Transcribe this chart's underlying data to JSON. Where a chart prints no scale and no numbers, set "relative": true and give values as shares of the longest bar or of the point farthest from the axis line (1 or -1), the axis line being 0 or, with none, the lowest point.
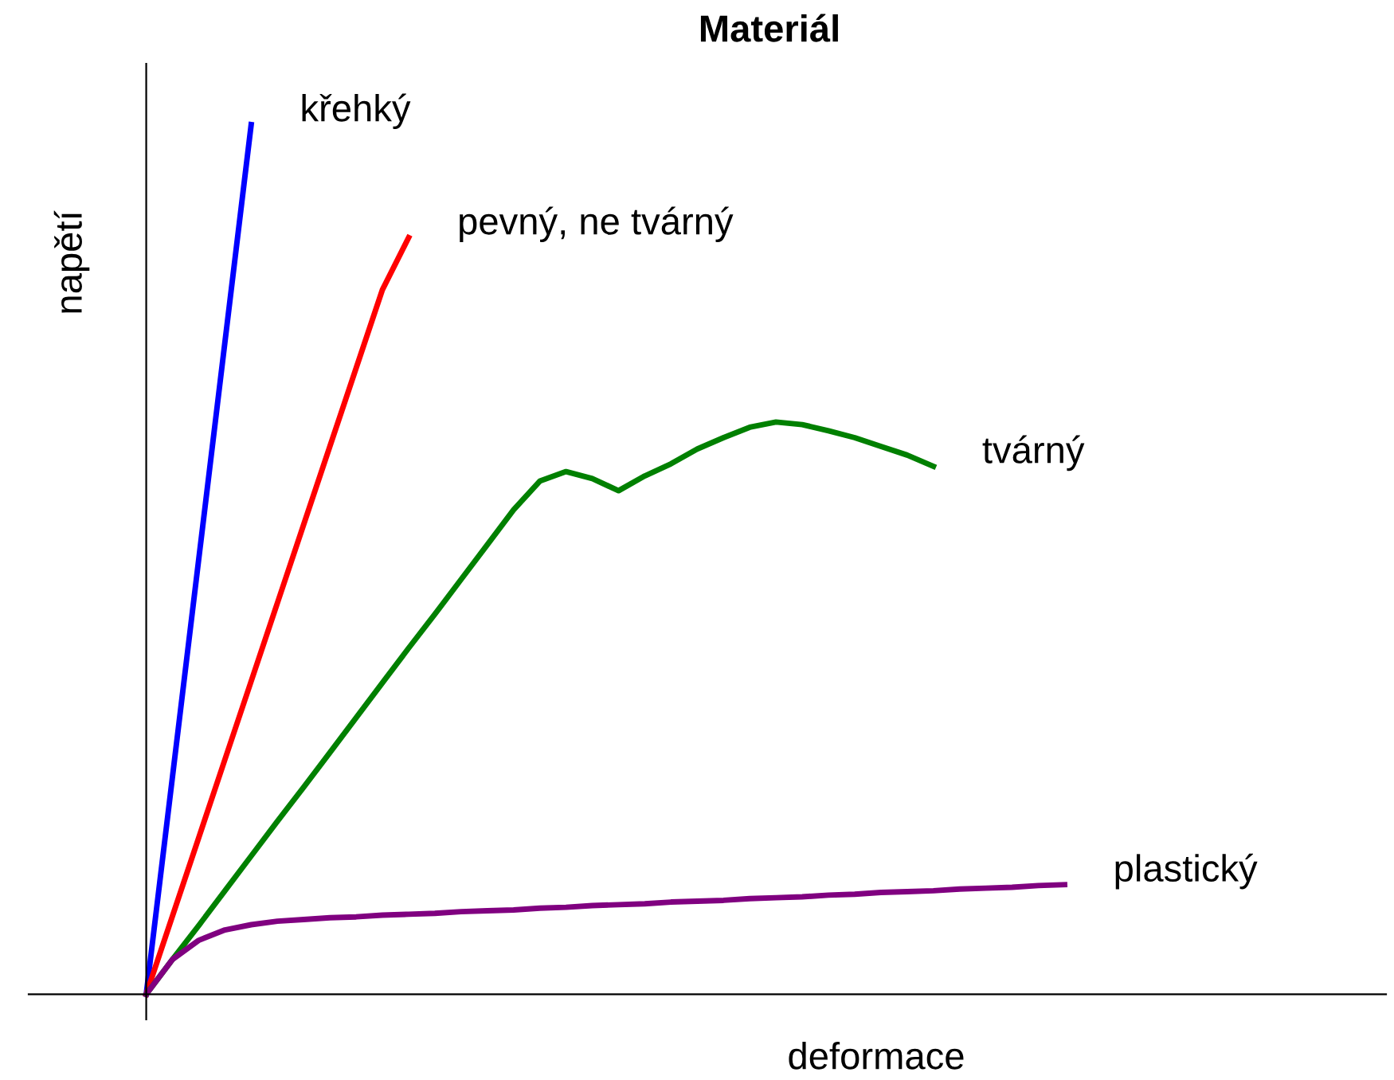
{
  "chart_data": {
    "type": "line",
    "title": "Materiál",
    "xlabel": "deformace",
    "ylabel": "napětí",
    "relative": true,
    "legend": false,
    "marker": "none",
    "line_style": "solid",
    "categories": [
      null,
      null,
      null,
      null,
      null,
      null,
      null,
      null,
      null,
      null,
      null,
      null,
      null,
      null,
      null,
      null,
      null,
      null,
      null,
      null,
      null,
      null,
      null,
      null,
      null,
      null,
      null,
      null,
      null,
      null,
      null,
      null,
      null,
      null,
      null,
      null
    ],
    "series": [
      {
        "name": "křehký",
        "color": "#0000ff",
        "values": [
          0,
          0.25,
          0.5,
          0.75,
          1,
          null,
          null,
          null,
          null,
          null,
          null,
          null,
          null,
          null,
          null,
          null,
          null,
          null,
          null,
          null,
          null,
          null,
          null,
          null,
          null,
          null,
          null,
          null,
          null,
          null,
          null,
          null,
          null,
          null,
          null,
          null
        ]
      },
      {
        "name": "pevný, ne tvárný",
        "color": "#ff0000",
        "values": [
          0,
          0.09,
          0.18,
          0.27,
          0.36,
          0.45,
          0.54,
          0.63,
          0.72,
          0.81,
          0.87,
          null,
          null,
          null,
          null,
          null,
          null,
          null,
          null,
          null,
          null,
          null,
          null,
          null,
          null,
          null,
          null,
          null,
          null,
          null,
          null,
          null,
          null,
          null,
          null,
          null
        ]
      },
      {
        "name": "tvárný",
        "color": "#008000",
        "values": [
          0,
          0.04,
          0.079,
          0.119,
          0.159,
          0.199,
          0.238,
          0.278,
          0.318,
          0.358,
          0.398,
          0.437,
          0.477,
          0.517,
          0.557,
          0.59,
          0.601,
          0.593,
          0.579,
          0.596,
          0.61,
          0.627,
          0.64,
          0.652,
          0.658,
          0.655,
          0.648,
          0.64,
          0.63,
          0.62,
          0.607,
          null,
          null,
          null,
          null,
          null
        ]
      },
      {
        "name": "plastický",
        "color": "#800080",
        "values": [
          0,
          0.04,
          0.062,
          0.074,
          0.08,
          0.084,
          0.086,
          0.088,
          0.089,
          0.091,
          0.092,
          0.093,
          0.095,
          0.096,
          0.097,
          0.099,
          0.1,
          0.102,
          0.103,
          0.104,
          0.106,
          0.107,
          0.108,
          0.11,
          0.111,
          0.112,
          0.114,
          0.115,
          0.117,
          0.118,
          0.119,
          0.121,
          0.122,
          0.123,
          0.125,
          0.126
        ]
      }
    ]
  }
}
